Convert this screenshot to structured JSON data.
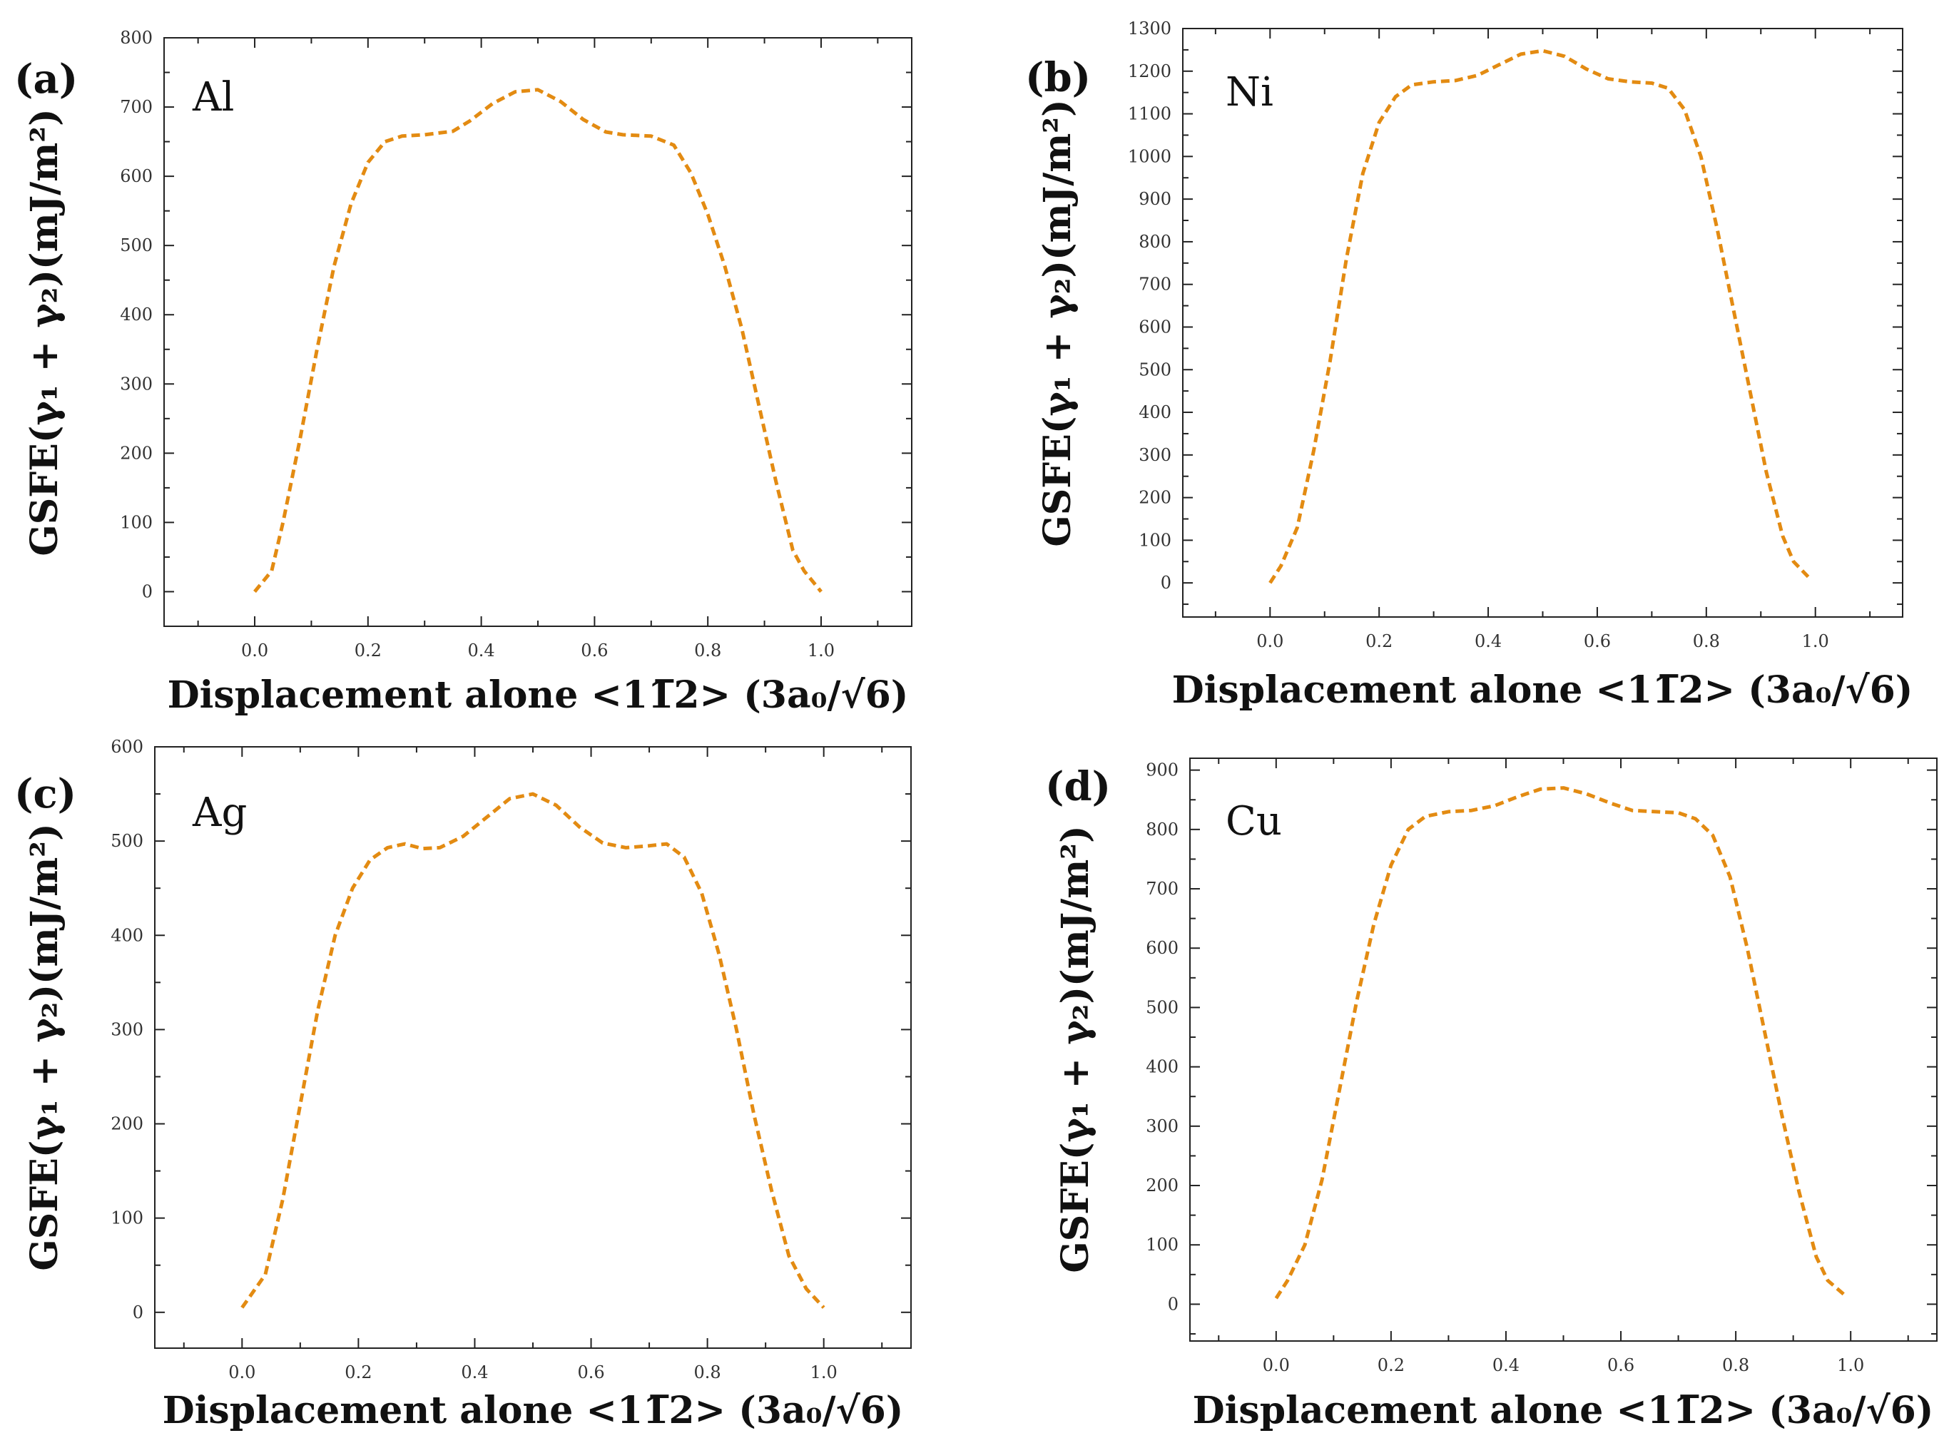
{
  "figure": {
    "colors": {
      "line": "#e38b12",
      "axis": "#222222",
      "text": "#111111"
    },
    "x_label": "Displacement alone <11̅2> (3a₀/√6)",
    "y_label": "GSFE(γ₁ + γ₂)(mJ/m²)"
  },
  "chart_data": [
    {
      "type": "line",
      "panel_label": "(a)",
      "element": "Al",
      "xlabel": "Displacement alone <11̅2> (3a₀/√6)",
      "ylabel": "GSFE(γ₁ + γ₂)(mJ/m²)",
      "xlim": [
        -0.16,
        1.16
      ],
      "ylim": [
        -50,
        800
      ],
      "xticks": [
        0.0,
        0.2,
        0.4,
        0.6,
        0.8,
        1.0
      ],
      "xtick_labels": [
        "0.0",
        "0.2",
        "0.4",
        "0.6",
        "0.8",
        "1.0"
      ],
      "yticks": [
        0,
        100,
        200,
        300,
        400,
        500,
        600,
        700,
        800
      ],
      "ytick_labels": [
        "0",
        "100",
        "200",
        "300",
        "400",
        "500",
        "600",
        "700",
        "800"
      ],
      "series": [
        {
          "name": "Al",
          "x": [
            0.0,
            0.03,
            0.05,
            0.08,
            0.11,
            0.14,
            0.17,
            0.2,
            0.23,
            0.26,
            0.3,
            0.35,
            0.38,
            0.42,
            0.46,
            0.5,
            0.54,
            0.58,
            0.62,
            0.65,
            0.7,
            0.74,
            0.77,
            0.8,
            0.83,
            0.86,
            0.89,
            0.92,
            0.95,
            0.97,
            1.0
          ],
          "y": [
            0,
            30,
            100,
            220,
            350,
            470,
            560,
            620,
            650,
            658,
            660,
            665,
            680,
            705,
            722,
            725,
            708,
            682,
            664,
            660,
            658,
            645,
            605,
            545,
            470,
            380,
            270,
            160,
            60,
            30,
            0
          ]
        }
      ]
    },
    {
      "type": "line",
      "panel_label": "(b)",
      "element": "Ni",
      "xlabel": "Displacement alone <11̅2> (3a₀/√6)",
      "ylabel": "GSFE(γ₁ + γ₂)(mJ/m²)",
      "xlim": [
        -0.16,
        1.16
      ],
      "ylim": [
        -80,
        1300
      ],
      "xticks": [
        0.0,
        0.2,
        0.4,
        0.6,
        0.8,
        1.0
      ],
      "xtick_labels": [
        "0.0",
        "0.2",
        "0.4",
        "0.6",
        "0.8",
        "1.0"
      ],
      "yticks": [
        0,
        100,
        200,
        300,
        400,
        500,
        600,
        700,
        800,
        900,
        1000,
        1100,
        1200,
        1300
      ],
      "ytick_labels": [
        "0",
        "100",
        "200",
        "300",
        "400",
        "500",
        "600",
        "700",
        "800",
        "900",
        "1000",
        "1100",
        "1200",
        "1300"
      ],
      "series": [
        {
          "name": "Ni",
          "x": [
            0.0,
            0.02,
            0.05,
            0.08,
            0.11,
            0.14,
            0.17,
            0.2,
            0.23,
            0.26,
            0.3,
            0.34,
            0.38,
            0.42,
            0.46,
            0.5,
            0.54,
            0.58,
            0.62,
            0.66,
            0.7,
            0.73,
            0.76,
            0.79,
            0.82,
            0.85,
            0.88,
            0.91,
            0.94,
            0.96,
            0.99
          ],
          "y": [
            0,
            40,
            130,
            310,
            520,
            760,
            960,
            1080,
            1140,
            1168,
            1175,
            1178,
            1190,
            1215,
            1240,
            1248,
            1235,
            1205,
            1182,
            1175,
            1172,
            1160,
            1110,
            1000,
            830,
            640,
            450,
            260,
            110,
            50,
            10
          ]
        }
      ]
    },
    {
      "type": "line",
      "panel_label": "(c)",
      "element": "Ag",
      "xlabel": "Displacement alone <11̅2> (3a₀/√6)",
      "ylabel": "GSFE(γ₁ + γ₂)(mJ/m²)",
      "xlim": [
        -0.15,
        1.15
      ],
      "ylim": [
        -38,
        600
      ],
      "xticks": [
        0.0,
        0.2,
        0.4,
        0.6,
        0.8,
        1.0
      ],
      "xtick_labels": [
        "0.0",
        "0.2",
        "0.4",
        "0.6",
        "0.8",
        "1.0"
      ],
      "yticks": [
        0,
        100,
        200,
        300,
        400,
        500,
        600
      ],
      "ytick_labels": [
        "0",
        "100",
        "200",
        "300",
        "400",
        "500",
        "600"
      ],
      "series": [
        {
          "name": "Ag",
          "x": [
            0.0,
            0.04,
            0.07,
            0.1,
            0.13,
            0.16,
            0.19,
            0.22,
            0.25,
            0.28,
            0.31,
            0.34,
            0.38,
            0.42,
            0.46,
            0.5,
            0.54,
            0.58,
            0.62,
            0.66,
            0.7,
            0.73,
            0.76,
            0.79,
            0.82,
            0.85,
            0.88,
            0.91,
            0.94,
            0.97,
            1.0
          ],
          "y": [
            5,
            40,
            120,
            220,
            320,
            400,
            450,
            480,
            493,
            497,
            492,
            493,
            505,
            525,
            545,
            550,
            538,
            515,
            498,
            493,
            495,
            497,
            483,
            445,
            380,
            300,
            210,
            130,
            60,
            25,
            5
          ]
        }
      ]
    },
    {
      "type": "line",
      "panel_label": "(d)",
      "element": "Cu",
      "xlabel": "Displacement alone <11̅2> (3a₀/√6)",
      "ylabel": "GSFE(γ₁ + γ₂)(mJ/m²)",
      "xlim": [
        -0.15,
        1.15
      ],
      "ylim": [
        -62,
        920
      ],
      "xticks": [
        0.0,
        0.2,
        0.4,
        0.6,
        0.8,
        1.0
      ],
      "xtick_labels": [
        "0.0",
        "0.2",
        "0.4",
        "0.6",
        "0.8",
        "1.0"
      ],
      "yticks": [
        0,
        100,
        200,
        300,
        400,
        500,
        600,
        700,
        800,
        900
      ],
      "ytick_labels": [
        "0",
        "100",
        "200",
        "300",
        "400",
        "500",
        "600",
        "700",
        "800",
        "900"
      ],
      "series": [
        {
          "name": "Cu",
          "x": [
            0.0,
            0.02,
            0.05,
            0.08,
            0.11,
            0.14,
            0.17,
            0.2,
            0.23,
            0.26,
            0.3,
            0.34,
            0.38,
            0.42,
            0.46,
            0.5,
            0.54,
            0.58,
            0.62,
            0.66,
            0.7,
            0.73,
            0.76,
            0.79,
            0.82,
            0.85,
            0.88,
            0.91,
            0.94,
            0.96,
            0.99
          ],
          "y": [
            10,
            40,
            100,
            210,
            360,
            510,
            640,
            740,
            800,
            822,
            830,
            832,
            840,
            855,
            868,
            870,
            860,
            845,
            832,
            830,
            828,
            818,
            790,
            720,
            600,
            460,
            320,
            190,
            80,
            40,
            15
          ]
        }
      ]
    }
  ]
}
